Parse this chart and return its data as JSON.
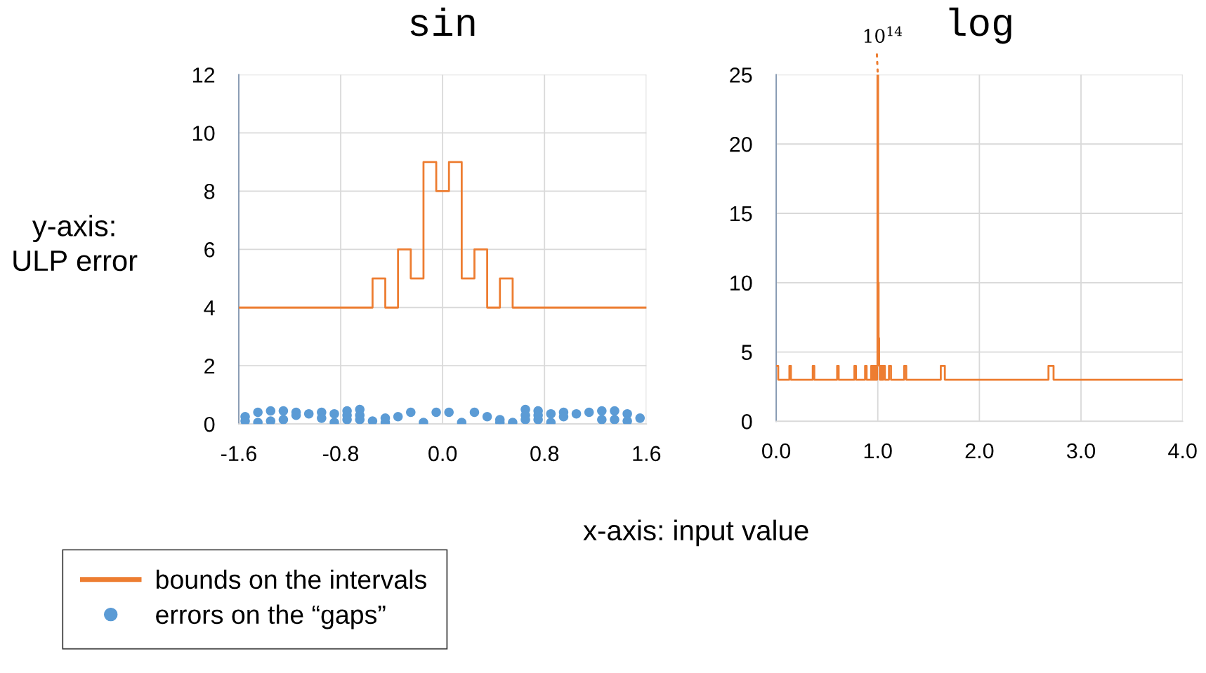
{
  "chart_data": [
    {
      "type": "step",
      "title": "sin",
      "ylabel": "y-axis:\nULP error",
      "xlim": [
        -1.6,
        1.6
      ],
      "xticks": [
        -1.6,
        -0.8,
        {
          "value": 0,
          "label": "0.0"
        },
        0.8,
        1.6
      ],
      "ylim": [
        0,
        12
      ],
      "yticks": [
        0,
        2,
        4,
        6,
        8,
        10,
        12
      ],
      "grid": true,
      "legend": "bottom left",
      "series": [
        {
          "name": "bounds on the intervals",
          "color": "#ed7d31",
          "x": [
            -1.6,
            -0.55,
            -0.45,
            -0.35,
            -0.25,
            -0.15,
            -0.05,
            0.05,
            0.15,
            0.25,
            0.35,
            0.45,
            0.55,
            1.6
          ],
          "values": [
            4,
            5,
            4,
            6,
            5,
            9,
            8,
            9,
            5,
            6,
            4,
            5,
            4,
            4
          ]
        },
        {
          "name": "errors on the “gaps”",
          "type": "scatter",
          "marker": "circle",
          "color": "#5b9bd5",
          "x": [
            -1.55,
            -1.55,
            -1.45,
            -1.45,
            -1.35,
            -1.35,
            -1.25,
            -1.25,
            -1.15,
            -1.15,
            -1.05,
            -0.95,
            -0.95,
            -0.85,
            -0.85,
            -0.75,
            -0.75,
            -0.75,
            -0.65,
            -0.65,
            -0.65,
            -0.55,
            -0.45,
            -0.45,
            -0.35,
            -0.25,
            -0.15,
            -0.05,
            0.05,
            0.15,
            0.25,
            0.35,
            0.45,
            0.45,
            0.55,
            0.65,
            0.65,
            0.65,
            0.75,
            0.75,
            0.75,
            0.85,
            0.85,
            0.95,
            0.95,
            1.05,
            1.15,
            1.25,
            1.25,
            1.35,
            1.35,
            1.45,
            1.45,
            1.55
          ],
          "values": [
            0.25,
            0.1,
            0.4,
            0.05,
            0.45,
            0.1,
            0.45,
            0.15,
            0.4,
            0.3,
            0.35,
            0.4,
            0.2,
            0.35,
            0.05,
            0.45,
            0.3,
            0.15,
            0.5,
            0.3,
            0.15,
            0.1,
            0.2,
            0.05,
            0.25,
            0.4,
            0.05,
            0.4,
            0.4,
            0.05,
            0.4,
            0.25,
            0.15,
            0.05,
            0.05,
            0.5,
            0.3,
            0.15,
            0.45,
            0.3,
            0.15,
            0.35,
            0.05,
            0.4,
            0.25,
            0.35,
            0.4,
            0.45,
            0.15,
            0.45,
            0.15,
            0.35,
            0.1,
            0.2
          ]
        }
      ]
    },
    {
      "type": "step",
      "title": "log",
      "xlabel": "x-axis: input value",
      "xlim": [
        0,
        4
      ],
      "xticks": [
        {
          "value": 0,
          "label": "0.0"
        },
        {
          "value": 1,
          "label": "1.0"
        },
        {
          "value": 2,
          "label": "2.0"
        },
        {
          "value": 3,
          "label": "3.0"
        },
        {
          "value": 4,
          "label": "4.0"
        }
      ],
      "ylim": [
        0,
        25
      ],
      "yticks": [
        0,
        5,
        10,
        15,
        20,
        25
      ],
      "grid": true,
      "annotations": [
        {
          "text": "10$^{14}$",
          "x": 1.0,
          "y": 25
        }
      ],
      "series": [
        {
          "color": "#ed7d31",
          "x": [
            0.0,
            0.02,
            0.13,
            0.145,
            0.36,
            0.375,
            0.6,
            0.615,
            0.77,
            0.785,
            0.875,
            0.89,
            0.935,
            0.945,
            0.95,
            0.96,
            0.965,
            0.975,
            0.98,
            0.99,
            0.993,
            0.997,
            1.003,
            1.008,
            1.013,
            1.02,
            1.025,
            1.035,
            1.04,
            1.05,
            1.055,
            1.07,
            1.11,
            1.13,
            1.26,
            1.28,
            1.62,
            1.66,
            2.68,
            2.73,
            4.0
          ],
          "values": [
            4,
            3,
            4,
            3,
            4,
            3,
            4,
            3,
            4,
            3,
            4,
            3,
            4,
            3,
            4,
            3,
            4,
            3,
            4,
            3,
            4,
            25,
            10,
            6,
            4,
            3,
            4,
            3,
            4,
            3,
            4,
            3,
            4,
            3,
            4,
            3,
            4,
            3,
            4,
            3,
            3
          ]
        }
      ]
    }
  ]
}
